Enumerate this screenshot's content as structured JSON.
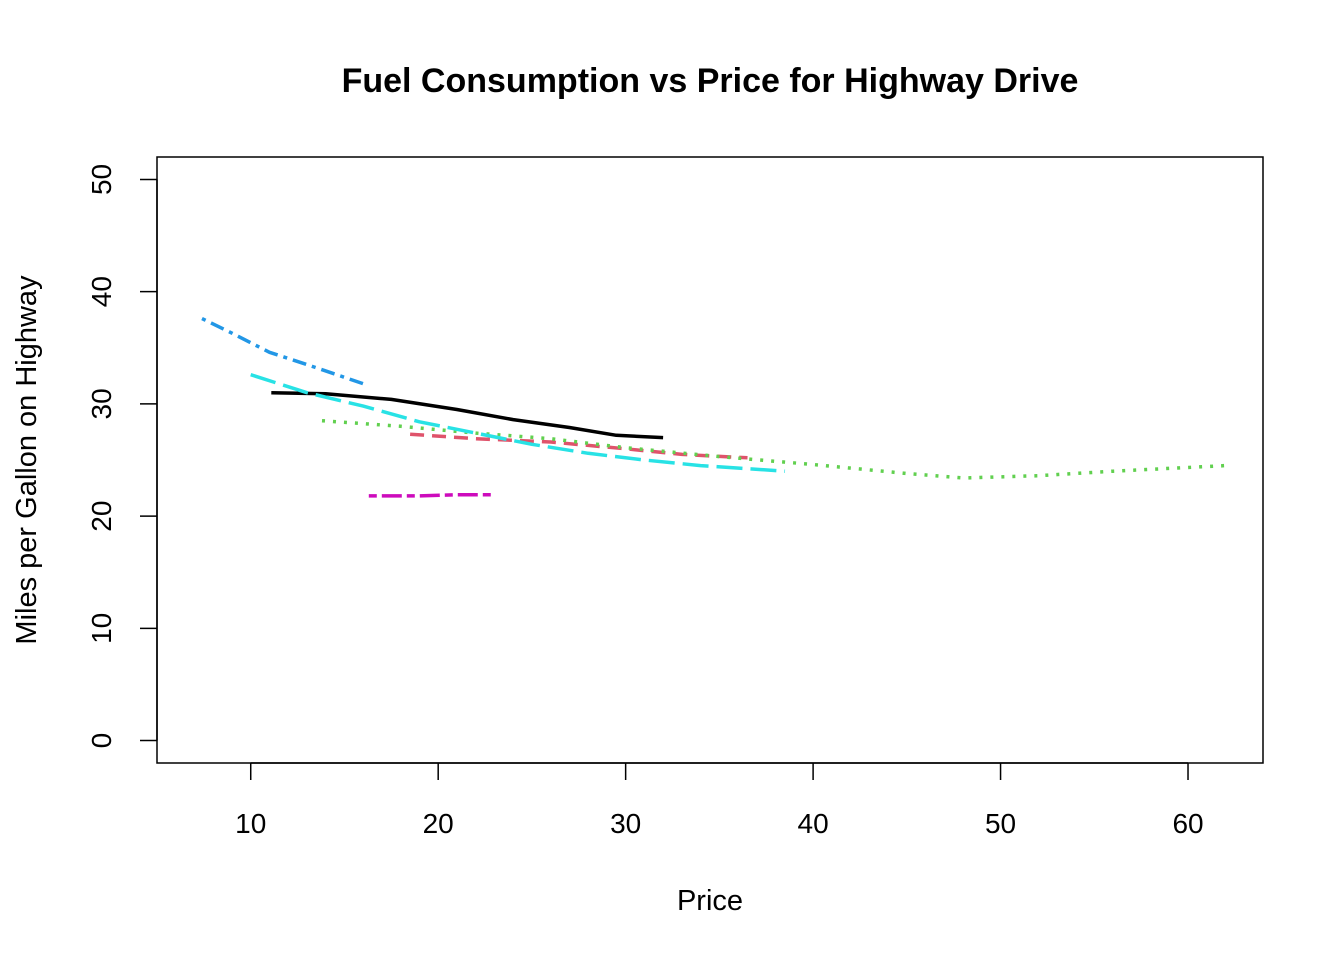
{
  "chart_data": {
    "type": "line",
    "title": "Fuel Consumption vs Price for Highway Drive",
    "xlabel": "Price",
    "ylabel": "Miles per Gallon on Highway",
    "xlim": [
      5,
      64
    ],
    "ylim": [
      -2,
      52
    ],
    "xticks": [
      10,
      20,
      30,
      40,
      50,
      60
    ],
    "yticks": [
      0,
      10,
      20,
      30,
      40,
      50
    ],
    "grid": false,
    "legend": "none",
    "series": [
      {
        "color": "#000000",
        "dash": "solid",
        "points": [
          [
            11.1,
            31.0
          ],
          [
            14,
            30.9
          ],
          [
            17.5,
            30.4
          ],
          [
            21,
            29.5
          ],
          [
            24,
            28.6
          ],
          [
            27,
            27.9
          ],
          [
            29.5,
            27.2
          ],
          [
            32,
            27.0
          ]
        ]
      },
      {
        "color": "#DF536B",
        "dash": "dashed",
        "points": [
          [
            18.5,
            27.3
          ],
          [
            22,
            26.9
          ],
          [
            26,
            26.6
          ],
          [
            30,
            26.0
          ],
          [
            33,
            25.5
          ],
          [
            36.5,
            25.2
          ]
        ]
      },
      {
        "color": "#61D04F",
        "dash": "dotted",
        "points": [
          [
            13.8,
            28.5
          ],
          [
            18,
            28.0
          ],
          [
            22,
            27.4
          ],
          [
            26,
            26.9
          ],
          [
            30,
            26.1
          ],
          [
            35,
            25.3
          ],
          [
            40,
            24.6
          ],
          [
            45,
            23.8
          ],
          [
            48,
            23.4
          ],
          [
            52,
            23.6
          ],
          [
            56,
            24.0
          ],
          [
            62,
            24.5
          ]
        ]
      },
      {
        "color": "#2297E6",
        "dash": "dotdash",
        "points": [
          [
            7.4,
            37.6
          ],
          [
            9,
            36.3
          ],
          [
            11,
            34.6
          ],
          [
            13,
            33.5
          ],
          [
            16,
            31.8
          ]
        ]
      },
      {
        "color": "#28E2E5",
        "dash": "longdash",
        "points": [
          [
            10,
            32.6
          ],
          [
            13,
            31.0
          ],
          [
            16,
            29.8
          ],
          [
            19,
            28.4
          ],
          [
            22,
            27.4
          ],
          [
            25,
            26.4
          ],
          [
            28,
            25.6
          ],
          [
            31,
            25.0
          ],
          [
            34,
            24.5
          ],
          [
            38.5,
            24.0
          ]
        ]
      },
      {
        "color": "#CD0BBC",
        "dash": "twodash",
        "points": [
          [
            16.3,
            21.8
          ],
          [
            19,
            21.8
          ],
          [
            21,
            21.9
          ],
          [
            23,
            21.9
          ]
        ]
      }
    ]
  }
}
